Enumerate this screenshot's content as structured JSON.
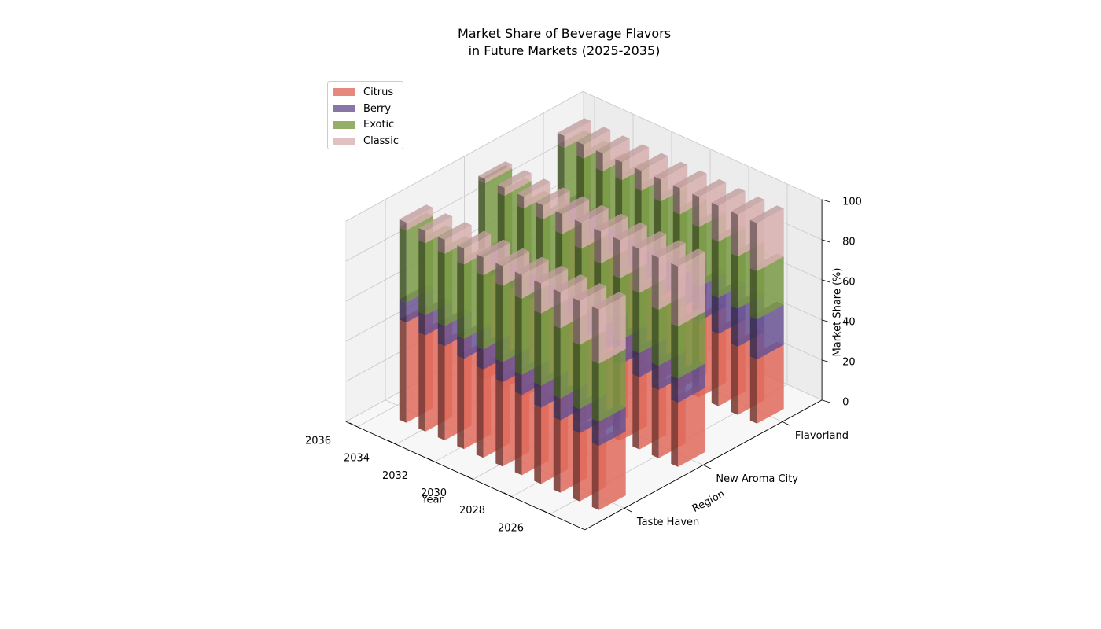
{
  "chart_data": {
    "type": "bar",
    "subtype": "3d-stacked-bar",
    "title_lines": [
      "Market Share of Beverage Flavors",
      "in Future Markets (2025-2035)"
    ],
    "xlabel": "Year",
    "ylabel": "Region",
    "zlabel": "Market Share (%)",
    "years": [
      2025,
      2026,
      2027,
      2028,
      2029,
      2030,
      2031,
      2032,
      2033,
      2034,
      2035
    ],
    "year_ticks": [
      "2026",
      "2028",
      "2030",
      "2032",
      "2034",
      "2036"
    ],
    "regions": [
      "Taste Haven",
      "New Aroma City",
      "Flavorland"
    ],
    "zlim": [
      0,
      100
    ],
    "z_ticks": [
      "0",
      "20",
      "40",
      "60",
      "80",
      "100"
    ],
    "grid": true,
    "legend_position": "upper-left",
    "series": [
      {
        "name": "Citrus",
        "color": "#e06a5c",
        "values": [
          [
            32,
            34,
            36,
            38,
            40,
            42,
            44,
            45,
            47,
            48,
            50
          ],
          [
            32,
            34,
            36,
            38,
            40,
            42,
            44,
            46,
            47,
            48,
            50
          ],
          [
            32,
            34,
            36,
            38,
            40,
            42,
            44,
            46,
            48,
            50,
            52
          ]
        ]
      },
      {
        "name": "Berry",
        "color": "#6a5494",
        "values": [
          [
            12,
            12,
            11,
            11,
            10,
            10,
            10,
            10,
            10,
            10,
            10
          ],
          [
            12,
            12,
            12,
            12,
            12,
            12,
            12,
            12,
            12,
            12,
            12
          ],
          [
            20,
            19,
            18,
            17,
            16,
            15,
            14,
            13,
            12,
            12,
            12
          ]
        ]
      },
      {
        "name": "Exotic",
        "color": "#7a9a45",
        "values": [
          [
            29,
            32,
            35,
            36,
            38,
            38,
            37,
            37,
            36,
            36,
            36
          ],
          [
            26,
            28,
            30,
            31,
            32,
            33,
            34,
            35,
            35,
            36,
            36
          ],
          [
            24,
            26,
            28,
            30,
            31,
            32,
            32,
            32,
            31,
            31,
            30
          ]
        ]
      },
      {
        "name": "Classic",
        "color": "#d8b0b0",
        "values": [
          [
            27,
            22,
            18,
            15,
            12,
            10,
            9,
            8,
            7,
            6,
            4
          ],
          [
            30,
            26,
            22,
            19,
            16,
            13,
            10,
            7,
            6,
            4,
            2
          ],
          [
            24,
            21,
            18,
            15,
            13,
            11,
            10,
            9,
            9,
            7,
            6
          ]
        ]
      }
    ]
  }
}
